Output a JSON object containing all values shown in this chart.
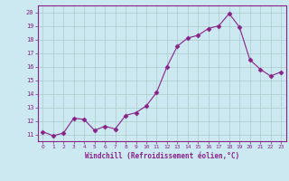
{
  "x": [
    0,
    1,
    2,
    3,
    4,
    5,
    6,
    7,
    8,
    9,
    10,
    11,
    12,
    13,
    14,
    15,
    16,
    17,
    18,
    19,
    20,
    21,
    22,
    23
  ],
  "y": [
    11.2,
    10.9,
    11.1,
    12.2,
    12.1,
    11.3,
    11.6,
    11.4,
    12.4,
    12.6,
    13.1,
    14.1,
    16.0,
    17.5,
    18.1,
    18.3,
    18.8,
    19.0,
    19.9,
    18.9,
    16.5,
    15.8,
    15.3,
    15.6
  ],
  "line_color": "#882288",
  "marker": "D",
  "marker_size": 2.5,
  "bg_color": "#cce8f0",
  "grid_color": "#aacccc",
  "xlabel": "Windchill (Refroidissement éolien,°C)",
  "xlabel_color": "#882288",
  "tick_color": "#882288",
  "spine_color": "#882288",
  "ylim": [
    10.5,
    20.5
  ],
  "xlim": [
    -0.5,
    23.5
  ],
  "yticks": [
    11,
    12,
    13,
    14,
    15,
    16,
    17,
    18,
    19,
    20
  ],
  "xticks": [
    0,
    1,
    2,
    3,
    4,
    5,
    6,
    7,
    8,
    9,
    10,
    11,
    12,
    13,
    14,
    15,
    16,
    17,
    18,
    19,
    20,
    21,
    22,
    23
  ]
}
